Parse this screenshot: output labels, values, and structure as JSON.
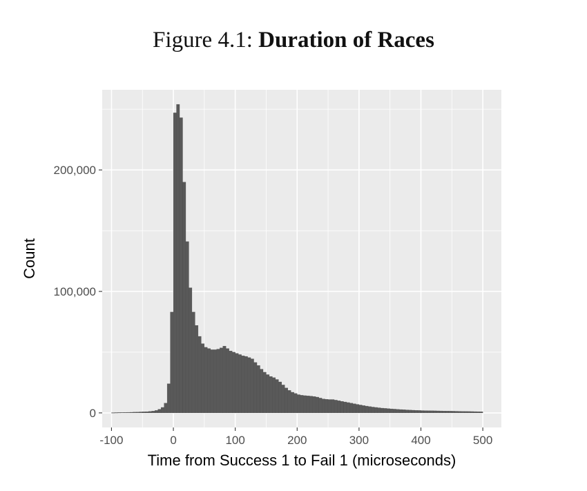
{
  "figure": {
    "prefix": "Figure 4.1:",
    "title": "Duration of Races"
  },
  "chart_data": {
    "type": "bar",
    "xlabel": "Time from Success 1 to Fail 1 (microseconds)",
    "ylabel": "Count",
    "xlim": [
      -115,
      530
    ],
    "ylim": [
      -12000,
      266000
    ],
    "x_ticks": [
      -100,
      0,
      100,
      200,
      300,
      400,
      500
    ],
    "x_tick_labels": [
      "-100",
      "0",
      "100",
      "200",
      "300",
      "400",
      "500"
    ],
    "y_ticks": [
      0,
      100000,
      200000
    ],
    "y_tick_labels": [
      "0",
      "100,000",
      "200,000"
    ],
    "grid": true,
    "panel_background": "#ebebeb",
    "bar_color": "#595959",
    "bin_width": 5,
    "bins": [
      {
        "x": -100,
        "y": 200
      },
      {
        "x": -95,
        "y": 250
      },
      {
        "x": -90,
        "y": 300
      },
      {
        "x": -85,
        "y": 350
      },
      {
        "x": -80,
        "y": 400
      },
      {
        "x": -75,
        "y": 450
      },
      {
        "x": -70,
        "y": 500
      },
      {
        "x": -65,
        "y": 600
      },
      {
        "x": -60,
        "y": 700
      },
      {
        "x": -55,
        "y": 800
      },
      {
        "x": -50,
        "y": 900
      },
      {
        "x": -45,
        "y": 1000
      },
      {
        "x": -40,
        "y": 1200
      },
      {
        "x": -35,
        "y": 1500
      },
      {
        "x": -30,
        "y": 2000
      },
      {
        "x": -25,
        "y": 3000
      },
      {
        "x": -20,
        "y": 4500
      },
      {
        "x": -15,
        "y": 8000
      },
      {
        "x": -10,
        "y": 24000
      },
      {
        "x": -5,
        "y": 83000
      },
      {
        "x": 0,
        "y": 247000
      },
      {
        "x": 5,
        "y": 254000
      },
      {
        "x": 10,
        "y": 243000
      },
      {
        "x": 15,
        "y": 190000
      },
      {
        "x": 20,
        "y": 141000
      },
      {
        "x": 25,
        "y": 103000
      },
      {
        "x": 30,
        "y": 83000
      },
      {
        "x": 35,
        "y": 72000
      },
      {
        "x": 40,
        "y": 63000
      },
      {
        "x": 45,
        "y": 57000
      },
      {
        "x": 50,
        "y": 54000
      },
      {
        "x": 55,
        "y": 53000
      },
      {
        "x": 60,
        "y": 52000
      },
      {
        "x": 65,
        "y": 52000
      },
      {
        "x": 70,
        "y": 52500
      },
      {
        "x": 75,
        "y": 53500
      },
      {
        "x": 80,
        "y": 55000
      },
      {
        "x": 85,
        "y": 53000
      },
      {
        "x": 90,
        "y": 51000
      },
      {
        "x": 95,
        "y": 50000
      },
      {
        "x": 100,
        "y": 49000
      },
      {
        "x": 105,
        "y": 48000
      },
      {
        "x": 110,
        "y": 47000
      },
      {
        "x": 115,
        "y": 46500
      },
      {
        "x": 120,
        "y": 45500
      },
      {
        "x": 125,
        "y": 44500
      },
      {
        "x": 130,
        "y": 41500
      },
      {
        "x": 135,
        "y": 39000
      },
      {
        "x": 140,
        "y": 36000
      },
      {
        "x": 145,
        "y": 33500
      },
      {
        "x": 150,
        "y": 31500
      },
      {
        "x": 155,
        "y": 30000
      },
      {
        "x": 160,
        "y": 29000
      },
      {
        "x": 165,
        "y": 27500
      },
      {
        "x": 170,
        "y": 25500
      },
      {
        "x": 175,
        "y": 23000
      },
      {
        "x": 180,
        "y": 20500
      },
      {
        "x": 185,
        "y": 18500
      },
      {
        "x": 190,
        "y": 17000
      },
      {
        "x": 195,
        "y": 16000
      },
      {
        "x": 200,
        "y": 15000
      },
      {
        "x": 205,
        "y": 14500
      },
      {
        "x": 210,
        "y": 14200
      },
      {
        "x": 215,
        "y": 14000
      },
      {
        "x": 220,
        "y": 13800
      },
      {
        "x": 225,
        "y": 13500
      },
      {
        "x": 230,
        "y": 13000
      },
      {
        "x": 235,
        "y": 12200
      },
      {
        "x": 240,
        "y": 11500
      },
      {
        "x": 245,
        "y": 11200
      },
      {
        "x": 250,
        "y": 11000
      },
      {
        "x": 255,
        "y": 11000
      },
      {
        "x": 260,
        "y": 10500
      },
      {
        "x": 265,
        "y": 10000
      },
      {
        "x": 270,
        "y": 9500
      },
      {
        "x": 275,
        "y": 9000
      },
      {
        "x": 280,
        "y": 8500
      },
      {
        "x": 285,
        "y": 8000
      },
      {
        "x": 290,
        "y": 7500
      },
      {
        "x": 295,
        "y": 7000
      },
      {
        "x": 300,
        "y": 6500
      },
      {
        "x": 305,
        "y": 6000
      },
      {
        "x": 310,
        "y": 5600
      },
      {
        "x": 315,
        "y": 5200
      },
      {
        "x": 320,
        "y": 4800
      },
      {
        "x": 325,
        "y": 4500
      },
      {
        "x": 330,
        "y": 4200
      },
      {
        "x": 335,
        "y": 3900
      },
      {
        "x": 340,
        "y": 3700
      },
      {
        "x": 345,
        "y": 3500
      },
      {
        "x": 350,
        "y": 3300
      },
      {
        "x": 355,
        "y": 3100
      },
      {
        "x": 360,
        "y": 2900
      },
      {
        "x": 365,
        "y": 2750
      },
      {
        "x": 370,
        "y": 2600
      },
      {
        "x": 375,
        "y": 2450
      },
      {
        "x": 380,
        "y": 2300
      },
      {
        "x": 385,
        "y": 2200
      },
      {
        "x": 390,
        "y": 2100
      },
      {
        "x": 395,
        "y": 2000
      },
      {
        "x": 400,
        "y": 1900
      },
      {
        "x": 405,
        "y": 1850
      },
      {
        "x": 410,
        "y": 1800
      },
      {
        "x": 415,
        "y": 1750
      },
      {
        "x": 420,
        "y": 1700
      },
      {
        "x": 425,
        "y": 1650
      },
      {
        "x": 430,
        "y": 1600
      },
      {
        "x": 435,
        "y": 1550
      },
      {
        "x": 440,
        "y": 1500
      },
      {
        "x": 445,
        "y": 1450
      },
      {
        "x": 450,
        "y": 1400
      },
      {
        "x": 455,
        "y": 1350
      },
      {
        "x": 460,
        "y": 1300
      },
      {
        "x": 465,
        "y": 1250
      },
      {
        "x": 470,
        "y": 1200
      },
      {
        "x": 475,
        "y": 1150
      },
      {
        "x": 480,
        "y": 1100
      },
      {
        "x": 485,
        "y": 1050
      },
      {
        "x": 490,
        "y": 1000
      },
      {
        "x": 495,
        "y": 950
      }
    ]
  }
}
